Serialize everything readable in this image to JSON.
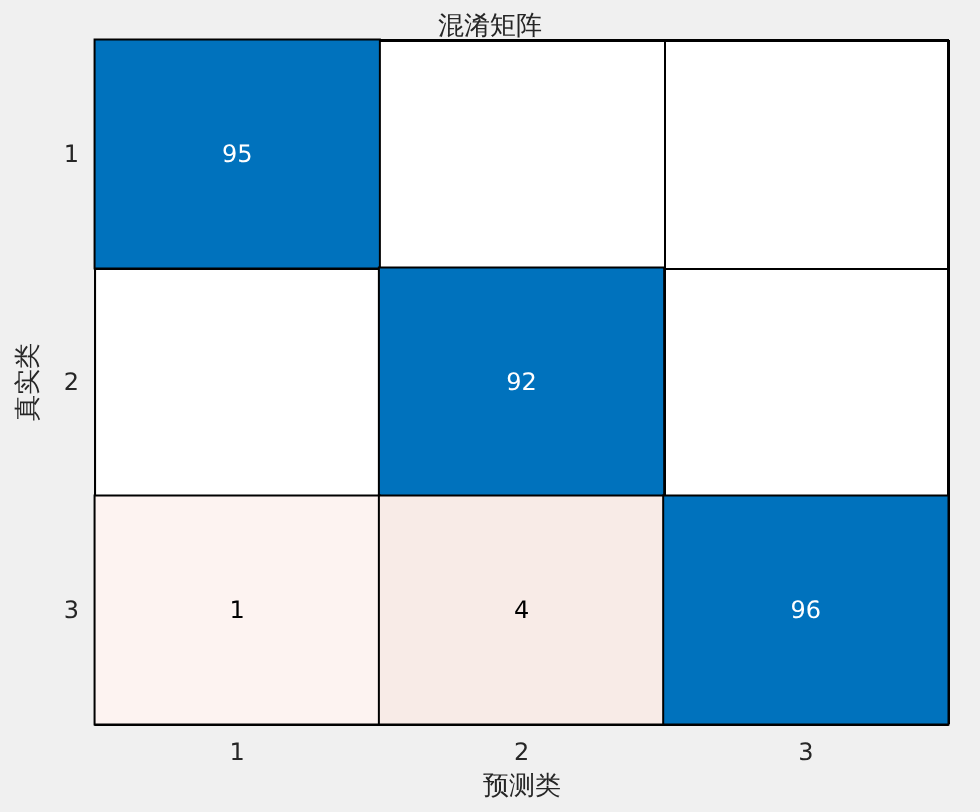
{
  "chart_data": {
    "type": "heatmap",
    "title": "混淆矩阵",
    "xlabel": "预测类",
    "ylabel": "真实类",
    "categories": [
      "1",
      "2",
      "3"
    ],
    "y_categories": [
      "1",
      "2",
      "3"
    ],
    "cells": [
      [
        95,
        null,
        null
      ],
      [
        null,
        92,
        null
      ],
      [
        1,
        4,
        96
      ]
    ],
    "colors": [
      [
        "#0072bd",
        null,
        null
      ],
      [
        null,
        "#0072bd",
        null
      ],
      [
        "#fdf3f1",
        "#f8ebe7",
        "#0072bd"
      ]
    ],
    "data_labels": true
  }
}
